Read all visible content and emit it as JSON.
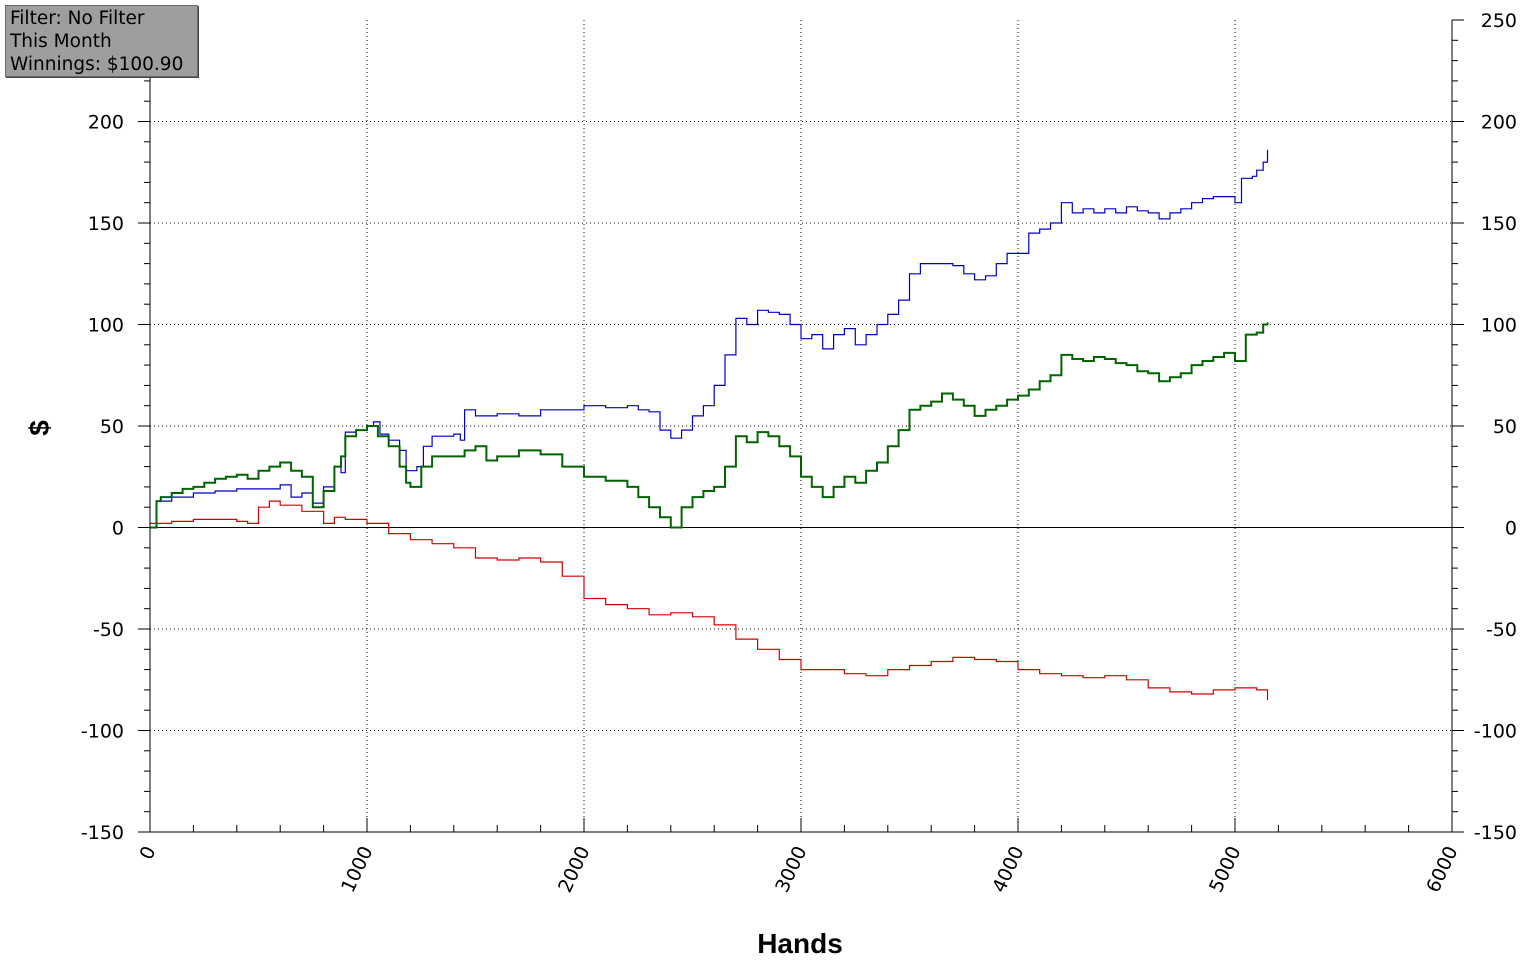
{
  "info_box": {
    "filter": "Filter: No Filter",
    "period": "This Month",
    "winnings": "Winnings: $100.90"
  },
  "chart_data": {
    "type": "line",
    "xlabel": "Hands",
    "ylabel": "$",
    "xlim": [
      0,
      6000
    ],
    "ylim": [
      -150,
      250
    ],
    "x_ticks": [
      "0",
      "1000",
      "2000",
      "3000",
      "4000",
      "5000",
      "6000"
    ],
    "y_ticks_left": [
      "-150",
      "-100",
      "-50",
      "0",
      "50",
      "100",
      "150",
      "200"
    ],
    "y_ticks_right": [
      "-150",
      "-100",
      "-50",
      "0",
      "50",
      "100",
      "150",
      "200",
      "250"
    ],
    "grid": "dotted",
    "series": [
      {
        "color": "#0000c8",
        "points": [
          [
            0,
            0
          ],
          [
            30,
            13
          ],
          [
            100,
            15
          ],
          [
            200,
            17
          ],
          [
            300,
            18
          ],
          [
            400,
            19
          ],
          [
            500,
            19
          ],
          [
            600,
            21
          ],
          [
            650,
            15
          ],
          [
            700,
            17
          ],
          [
            750,
            12
          ],
          [
            800,
            20
          ],
          [
            850,
            30
          ],
          [
            880,
            27
          ],
          [
            900,
            47
          ],
          [
            950,
            48
          ],
          [
            1000,
            50
          ],
          [
            1030,
            52
          ],
          [
            1060,
            46
          ],
          [
            1100,
            43
          ],
          [
            1150,
            38
          ],
          [
            1180,
            28
          ],
          [
            1230,
            30
          ],
          [
            1260,
            40
          ],
          [
            1300,
            45
          ],
          [
            1400,
            46
          ],
          [
            1430,
            43
          ],
          [
            1450,
            58
          ],
          [
            1500,
            55
          ],
          [
            1600,
            56
          ],
          [
            1700,
            55
          ],
          [
            1800,
            58
          ],
          [
            1900,
            58
          ],
          [
            2000,
            60
          ],
          [
            2100,
            59
          ],
          [
            2200,
            60
          ],
          [
            2250,
            58
          ],
          [
            2300,
            57
          ],
          [
            2350,
            48
          ],
          [
            2400,
            44
          ],
          [
            2450,
            48
          ],
          [
            2500,
            55
          ],
          [
            2550,
            60
          ],
          [
            2600,
            70
          ],
          [
            2650,
            85
          ],
          [
            2700,
            103
          ],
          [
            2750,
            100
          ],
          [
            2800,
            107
          ],
          [
            2850,
            106
          ],
          [
            2900,
            105
          ],
          [
            2950,
            100
          ],
          [
            3000,
            93
          ],
          [
            3050,
            95
          ],
          [
            3100,
            88
          ],
          [
            3150,
            95
          ],
          [
            3200,
            98
          ],
          [
            3250,
            90
          ],
          [
            3300,
            95
          ],
          [
            3350,
            100
          ],
          [
            3400,
            105
          ],
          [
            3450,
            112
          ],
          [
            3500,
            125
          ],
          [
            3550,
            130
          ],
          [
            3600,
            130
          ],
          [
            3700,
            129
          ],
          [
            3750,
            125
          ],
          [
            3800,
            122
          ],
          [
            3850,
            124
          ],
          [
            3900,
            130
          ],
          [
            3950,
            135
          ],
          [
            4000,
            135
          ],
          [
            4050,
            145
          ],
          [
            4100,
            147
          ],
          [
            4150,
            150
          ],
          [
            4200,
            160
          ],
          [
            4250,
            155
          ],
          [
            4300,
            157
          ],
          [
            4350,
            155
          ],
          [
            4400,
            157
          ],
          [
            4450,
            155
          ],
          [
            4500,
            158
          ],
          [
            4550,
            156
          ],
          [
            4600,
            155
          ],
          [
            4650,
            152
          ],
          [
            4700,
            155
          ],
          [
            4750,
            157
          ],
          [
            4800,
            160
          ],
          [
            4850,
            162
          ],
          [
            4900,
            163
          ],
          [
            4950,
            163
          ],
          [
            5000,
            160
          ],
          [
            5030,
            172
          ],
          [
            5080,
            173
          ],
          [
            5100,
            176
          ],
          [
            5130,
            180
          ],
          [
            5150,
            186
          ]
        ]
      },
      {
        "color": "#006400",
        "points": [
          [
            0,
            0
          ],
          [
            30,
            13
          ],
          [
            50,
            15
          ],
          [
            100,
            17
          ],
          [
            150,
            19
          ],
          [
            200,
            20
          ],
          [
            250,
            22
          ],
          [
            300,
            24
          ],
          [
            350,
            25
          ],
          [
            400,
            26
          ],
          [
            450,
            24
          ],
          [
            500,
            28
          ],
          [
            550,
            30
          ],
          [
            600,
            32
          ],
          [
            650,
            28
          ],
          [
            700,
            25
          ],
          [
            750,
            10
          ],
          [
            800,
            18
          ],
          [
            850,
            30
          ],
          [
            880,
            35
          ],
          [
            900,
            45
          ],
          [
            950,
            48
          ],
          [
            1000,
            50
          ],
          [
            1050,
            45
          ],
          [
            1100,
            40
          ],
          [
            1150,
            30
          ],
          [
            1180,
            22
          ],
          [
            1200,
            20
          ],
          [
            1250,
            30
          ],
          [
            1300,
            35
          ],
          [
            1400,
            35
          ],
          [
            1450,
            38
          ],
          [
            1500,
            40
          ],
          [
            1550,
            33
          ],
          [
            1600,
            35
          ],
          [
            1700,
            38
          ],
          [
            1800,
            36
          ],
          [
            1900,
            30
          ],
          [
            2000,
            25
          ],
          [
            2100,
            23
          ],
          [
            2200,
            20
          ],
          [
            2250,
            15
          ],
          [
            2300,
            10
          ],
          [
            2350,
            5
          ],
          [
            2400,
            0
          ],
          [
            2450,
            10
          ],
          [
            2500,
            15
          ],
          [
            2550,
            18
          ],
          [
            2600,
            20
          ],
          [
            2650,
            30
          ],
          [
            2700,
            45
          ],
          [
            2750,
            42
          ],
          [
            2800,
            47
          ],
          [
            2850,
            45
          ],
          [
            2900,
            40
          ],
          [
            2950,
            35
          ],
          [
            3000,
            25
          ],
          [
            3050,
            20
          ],
          [
            3100,
            15
          ],
          [
            3150,
            20
          ],
          [
            3200,
            25
          ],
          [
            3250,
            22
          ],
          [
            3300,
            28
          ],
          [
            3350,
            32
          ],
          [
            3400,
            40
          ],
          [
            3450,
            48
          ],
          [
            3500,
            58
          ],
          [
            3550,
            60
          ],
          [
            3600,
            62
          ],
          [
            3650,
            66
          ],
          [
            3700,
            63
          ],
          [
            3750,
            60
          ],
          [
            3800,
            55
          ],
          [
            3850,
            58
          ],
          [
            3900,
            60
          ],
          [
            3950,
            63
          ],
          [
            4000,
            65
          ],
          [
            4050,
            68
          ],
          [
            4100,
            72
          ],
          [
            4150,
            75
          ],
          [
            4200,
            85
          ],
          [
            4250,
            83
          ],
          [
            4300,
            82
          ],
          [
            4350,
            84
          ],
          [
            4400,
            83
          ],
          [
            4450,
            81
          ],
          [
            4500,
            80
          ],
          [
            4550,
            77
          ],
          [
            4600,
            76
          ],
          [
            4650,
            72
          ],
          [
            4700,
            74
          ],
          [
            4750,
            76
          ],
          [
            4800,
            80
          ],
          [
            4850,
            82
          ],
          [
            4900,
            84
          ],
          [
            4950,
            86
          ],
          [
            5000,
            82
          ],
          [
            5050,
            95
          ],
          [
            5100,
            96
          ],
          [
            5130,
            100
          ],
          [
            5150,
            101
          ]
        ]
      },
      {
        "color": "#d40000",
        "points": [
          [
            0,
            2
          ],
          [
            100,
            3
          ],
          [
            200,
            4
          ],
          [
            300,
            4
          ],
          [
            400,
            3
          ],
          [
            450,
            2
          ],
          [
            500,
            10
          ],
          [
            550,
            13
          ],
          [
            600,
            11
          ],
          [
            700,
            8
          ],
          [
            800,
            2
          ],
          [
            850,
            5
          ],
          [
            900,
            4
          ],
          [
            1000,
            2
          ],
          [
            1100,
            -3
          ],
          [
            1200,
            -6
          ],
          [
            1300,
            -8
          ],
          [
            1400,
            -10
          ],
          [
            1500,
            -15
          ],
          [
            1600,
            -16
          ],
          [
            1700,
            -15
          ],
          [
            1800,
            -17
          ],
          [
            1900,
            -24
          ],
          [
            2000,
            -35
          ],
          [
            2100,
            -38
          ],
          [
            2200,
            -40
          ],
          [
            2300,
            -43
          ],
          [
            2400,
            -42
          ],
          [
            2500,
            -44
          ],
          [
            2600,
            -48
          ],
          [
            2700,
            -55
          ],
          [
            2800,
            -60
          ],
          [
            2900,
            -65
          ],
          [
            3000,
            -70
          ],
          [
            3100,
            -70
          ],
          [
            3200,
            -72
          ],
          [
            3300,
            -73
          ],
          [
            3400,
            -70
          ],
          [
            3500,
            -68
          ],
          [
            3600,
            -66
          ],
          [
            3700,
            -64
          ],
          [
            3800,
            -65
          ],
          [
            3900,
            -66
          ],
          [
            4000,
            -70
          ],
          [
            4100,
            -72
          ],
          [
            4200,
            -73
          ],
          [
            4300,
            -74
          ],
          [
            4400,
            -73
          ],
          [
            4500,
            -75
          ],
          [
            4600,
            -79
          ],
          [
            4700,
            -81
          ],
          [
            4800,
            -82
          ],
          [
            4900,
            -80
          ],
          [
            5000,
            -79
          ],
          [
            5100,
            -80
          ],
          [
            5150,
            -85
          ]
        ]
      }
    ]
  }
}
